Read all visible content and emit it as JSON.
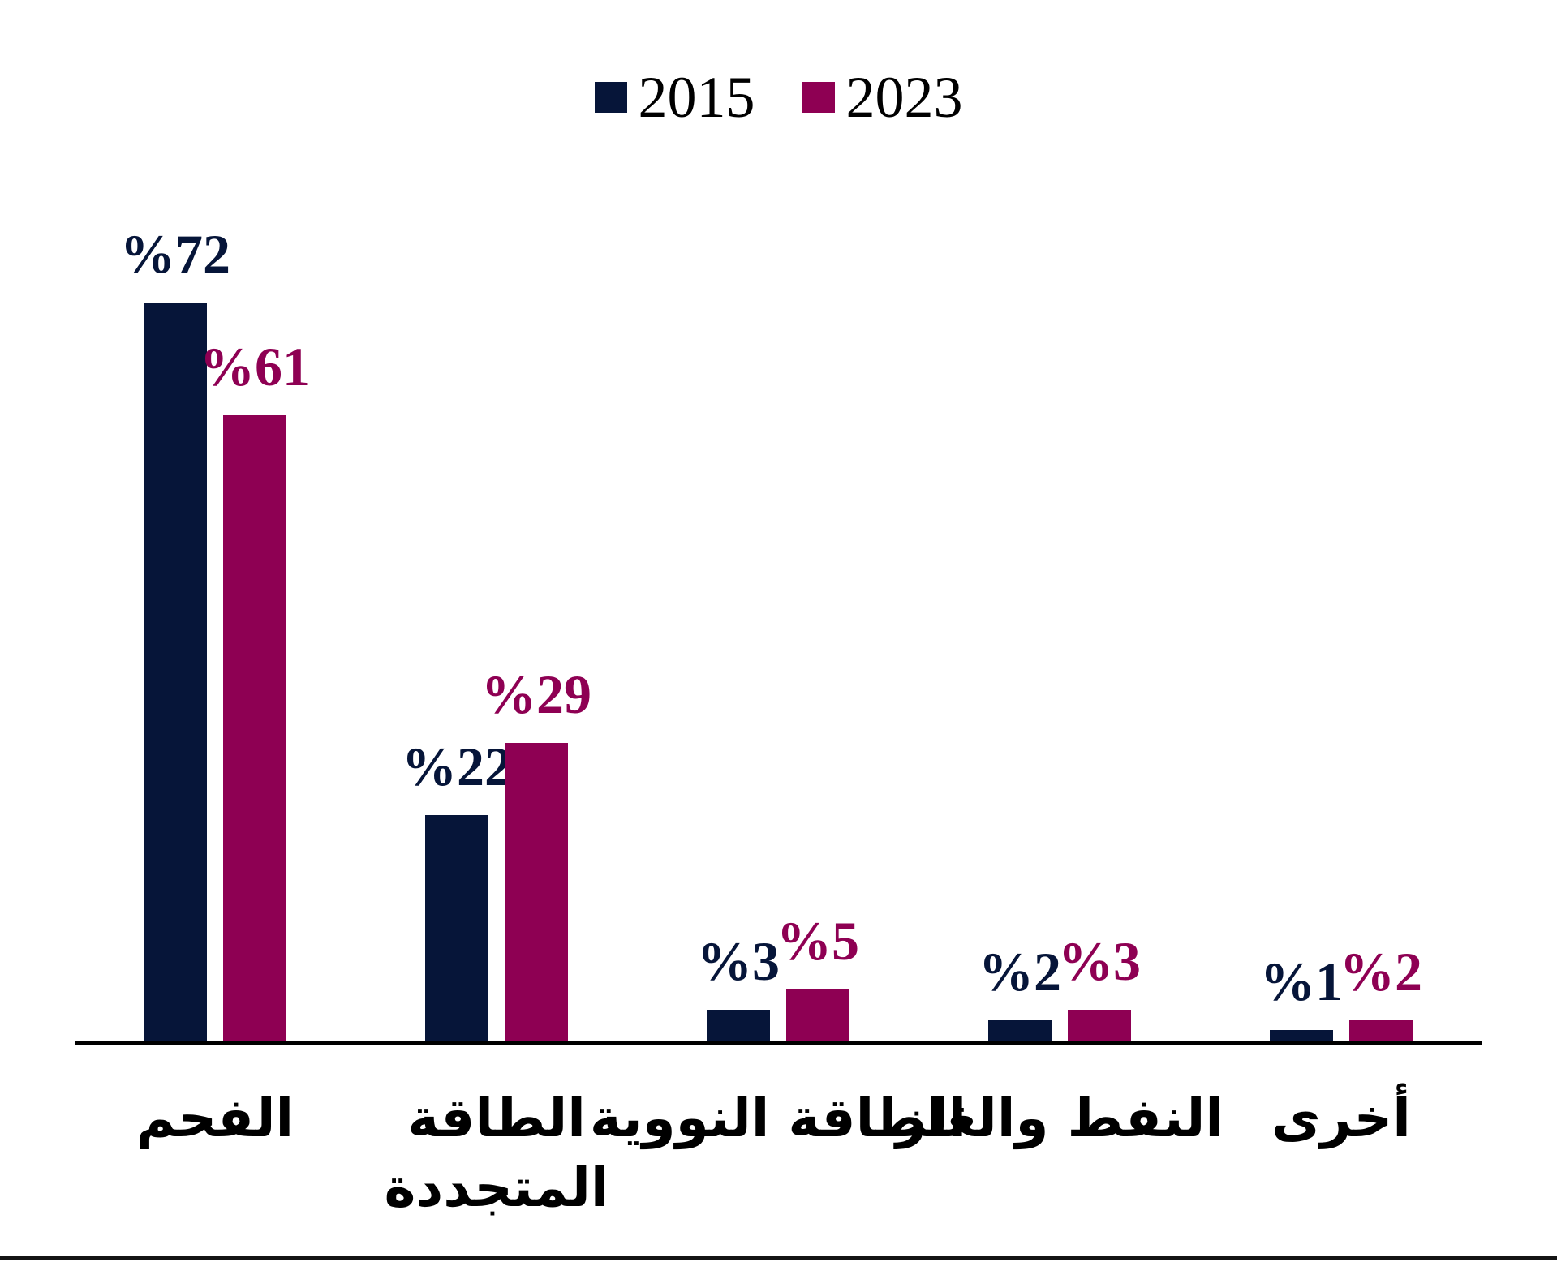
{
  "chart_data": {
    "type": "bar",
    "title": "",
    "unit": "percent",
    "grid": false,
    "legend_position": "top-center",
    "axis_line_color": "#000000",
    "bottom_rule_color": "#141414",
    "background_color": "#ffffff",
    "ylim": [
      0,
      80
    ],
    "categories": [
      "الفحم",
      "الطاقة المتجددة",
      "الطاقة النووية",
      "النفط والغاز",
      "أخرى"
    ],
    "categories_display": [
      [
        "الفحم"
      ],
      [
        "الطاقة",
        "المتجددة"
      ],
      [
        "الطاقة النووية"
      ],
      [
        "النفط والغاز"
      ],
      [
        "أخرى"
      ]
    ],
    "series": [
      {
        "name": "2015",
        "color": "#061539",
        "values": [
          72,
          22,
          3,
          2,
          1
        ],
        "value_labels": [
          "%72",
          "%22",
          "%3",
          "%2",
          "%1"
        ]
      },
      {
        "name": "2023",
        "color": "#8E0053",
        "values": [
          61,
          29,
          5,
          3,
          2
        ],
        "value_labels": [
          "%61",
          "%29",
          "%5",
          "%3",
          "%2"
        ]
      }
    ]
  }
}
